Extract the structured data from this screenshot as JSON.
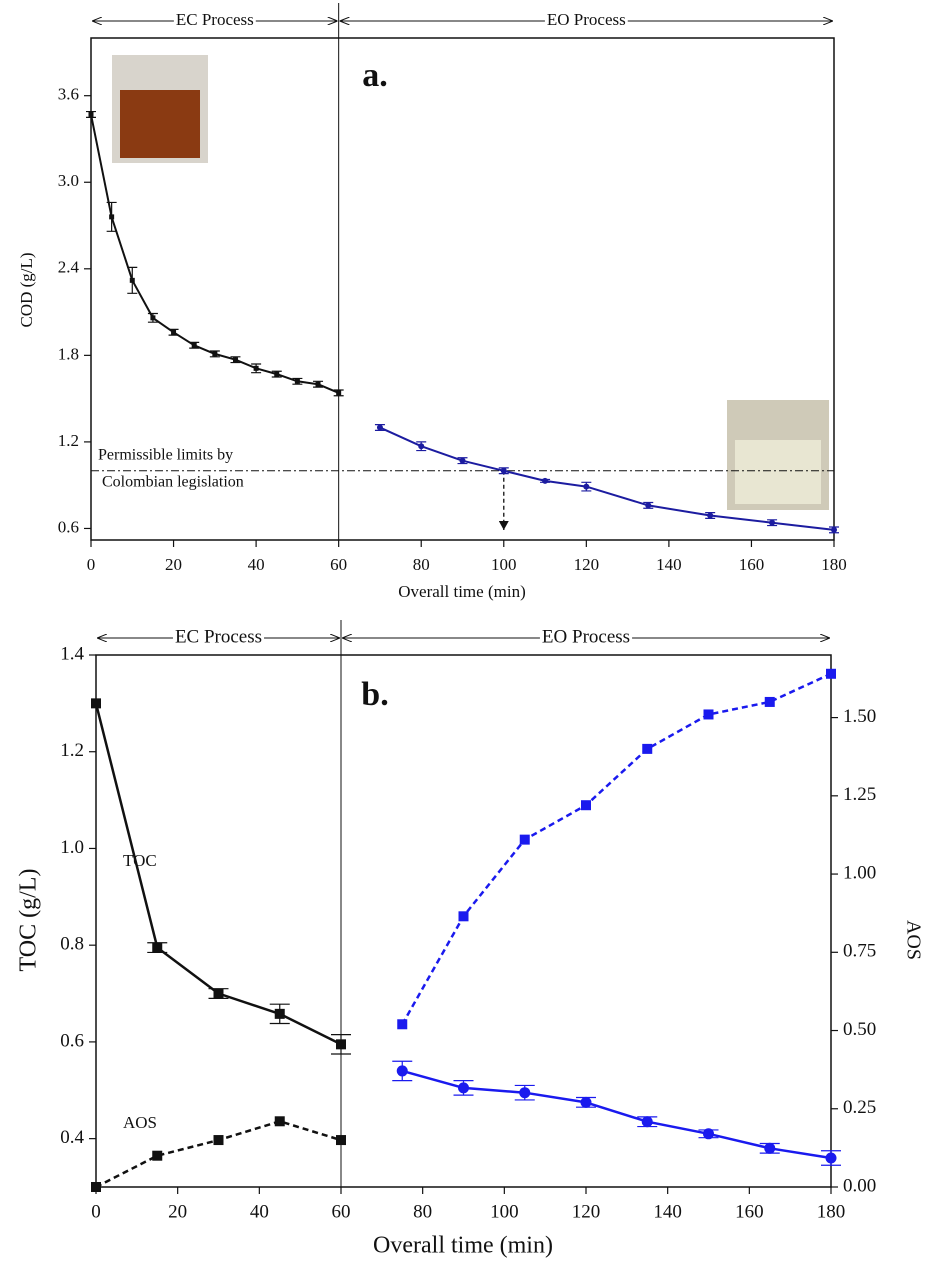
{
  "chart_data": [
    {
      "type": "line",
      "panel_label": "a.",
      "phase_labels": [
        "EC Process",
        "EO Process"
      ],
      "divider": 60,
      "xlabel": "Overall time (min)",
      "ylabel": "COD (g/L)",
      "xlim": [
        0,
        180
      ],
      "xticks": [
        0,
        20,
        40,
        60,
        80,
        100,
        120,
        140,
        160,
        180
      ],
      "ylim": [
        0.52,
        4.0
      ],
      "yticks": [
        0.6,
        1.2,
        1.8,
        2.4,
        {
          "value": 3.0,
          "label": "3.0"
        },
        3.6
      ],
      "limit": 1.0,
      "limit_label": [
        "Permissible limits by",
        "Colombian legislation"
      ],
      "limit_time": 100,
      "series": [
        {
          "color": "#111111",
          "marker": "square",
          "dash": false,
          "x": [
            0,
            5,
            10,
            15,
            20,
            25,
            30,
            35,
            40,
            45,
            50,
            55,
            60
          ],
          "values": [
            3.47,
            2.76,
            2.32,
            2.06,
            1.96,
            1.87,
            1.81,
            1.77,
            1.71,
            1.67,
            1.62,
            1.6,
            1.54
          ],
          "errors": [
            0.02,
            0.1,
            0.09,
            0.03,
            0.02,
            0.02,
            0.02,
            0.02,
            0.03,
            0.02,
            0.02,
            0.02,
            0.02
          ]
        },
        {
          "color": "#1c1ca0",
          "marker": "circle",
          "dash": false,
          "x": [
            70,
            80,
            90,
            100,
            110,
            120,
            135,
            150,
            165,
            180
          ],
          "values": [
            1.3,
            1.17,
            1.07,
            1.0,
            0.93,
            0.89,
            0.76,
            0.69,
            0.64,
            0.59
          ],
          "errors": [
            0.02,
            0.03,
            0.02,
            0.02,
            0.01,
            0.03,
            0.02,
            0.02,
            0.02,
            0.02
          ]
        }
      ]
    },
    {
      "type": "line",
      "panel_label": "b.",
      "phase_labels": [
        "EC Process",
        "EO Process"
      ],
      "divider": 60,
      "xlabel": "Overall time (min)",
      "ylabel": "TOC (g/L)",
      "y2label": "AOS",
      "xlim": [
        0,
        180
      ],
      "xticks": [
        0,
        20,
        40,
        60,
        80,
        100,
        120,
        140,
        160,
        180
      ],
      "ylim": [
        0.3,
        1.4
      ],
      "yticks": [
        0.4,
        0.6,
        0.8,
        {
          "value": 1.0,
          "label": "1.0"
        },
        1.2,
        1.4
      ],
      "y2lim": [
        0,
        1.7
      ],
      "y2ticks": [
        {
          "value": 0,
          "label": "0.00"
        },
        {
          "value": 0.25,
          "label": "0.25"
        },
        {
          "value": 0.5,
          "label": "0.50"
        },
        {
          "value": 0.75,
          "label": "0.75"
        },
        {
          "value": 1.0,
          "label": "1.00"
        },
        {
          "value": 1.25,
          "label": "1.25"
        },
        {
          "value": 1.5,
          "label": "1.50"
        }
      ],
      "annotations": [
        "TOC",
        "AOS"
      ],
      "series": [
        {
          "color": "#111111",
          "marker": "square",
          "dash": false,
          "x": [
            0,
            15,
            30,
            45,
            60
          ],
          "values": [
            1.3,
            0.795,
            0.7,
            0.658,
            0.595
          ],
          "errors": [
            0.0,
            0.01,
            0.01,
            0.02,
            0.02
          ]
        },
        {
          "color": "#1a1aee",
          "marker": "circle",
          "dash": false,
          "x": [
            75,
            90,
            105,
            120,
            135,
            150,
            165,
            180
          ],
          "values": [
            0.54,
            0.505,
            0.495,
            0.475,
            0.435,
            0.41,
            0.38,
            0.36
          ],
          "errors": [
            0.02,
            0.015,
            0.015,
            0.01,
            0.01,
            0.008,
            0.01,
            0.015
          ]
        },
        {
          "color": "#111111",
          "marker": "square",
          "dash": true,
          "axis": "y2",
          "x": [
            0,
            15,
            30,
            45,
            60
          ],
          "values": [
            0,
            0.1,
            0.15,
            0.21,
            0.15
          ]
        },
        {
          "color": "#1a1aee",
          "marker": "square",
          "dash": true,
          "axis": "y2",
          "x": [
            75,
            90,
            105,
            120,
            135,
            150,
            165,
            180
          ],
          "values": [
            0.52,
            0.865,
            1.11,
            1.22,
            1.4,
            1.51,
            1.55,
            1.64
          ]
        }
      ]
    }
  ]
}
